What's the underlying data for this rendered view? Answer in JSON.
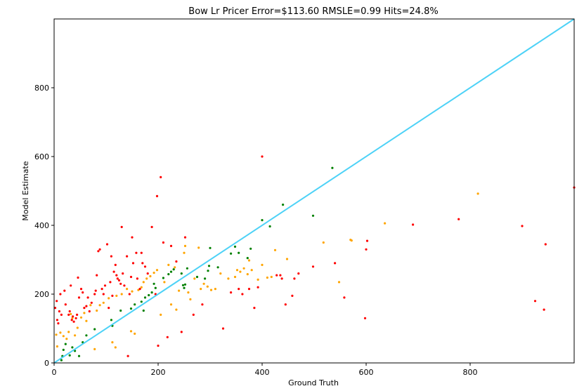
{
  "chart_data": {
    "type": "scatter",
    "title": "Bow Lr Pricer Error=$113.60 RMSLE=0.99 Hits=24.8%",
    "xlabel": "Ground Truth",
    "ylabel": "Model Estimate",
    "xlim": [
      0,
      1000
    ],
    "ylim": [
      0,
      1000
    ],
    "xticks": [
      0,
      200,
      400,
      600,
      800
    ],
    "yticks": [
      0,
      200,
      400,
      600,
      800
    ],
    "grid": false,
    "legend": "none",
    "colors": {
      "identity_line": "#4dd2f7",
      "red": "#ff0000",
      "orange": "#ffa500",
      "green": "#008000",
      "axis": "#000000"
    },
    "identity_line": {
      "x": [
        0,
        1000
      ],
      "y": [
        0,
        1000
      ]
    },
    "series": [
      {
        "color_key": "green",
        "points": [
          [
            14,
            8
          ],
          [
            16,
            20
          ],
          [
            18,
            38
          ],
          [
            22,
            55
          ],
          [
            30,
            22
          ],
          [
            35,
            45
          ],
          [
            40,
            35
          ],
          [
            48,
            20
          ],
          [
            55,
            60
          ],
          [
            62,
            80
          ],
          [
            78,
            98
          ],
          [
            110,
            125
          ],
          [
            112,
            108
          ],
          [
            128,
            152
          ],
          [
            148,
            158
          ],
          [
            155,
            170
          ],
          [
            168,
            178
          ],
          [
            172,
            152
          ],
          [
            175,
            190
          ],
          [
            182,
            197
          ],
          [
            188,
            205
          ],
          [
            192,
            230
          ],
          [
            195,
            218
          ],
          [
            210,
            247
          ],
          [
            220,
            258
          ],
          [
            225,
            265
          ],
          [
            230,
            272
          ],
          [
            245,
            260
          ],
          [
            248,
            226
          ],
          [
            250,
            218
          ],
          [
            252,
            228
          ],
          [
            256,
            275
          ],
          [
            275,
            250
          ],
          [
            290,
            245
          ],
          [
            296,
            268
          ],
          [
            298,
            282
          ],
          [
            300,
            334
          ],
          [
            315,
            278
          ],
          [
            340,
            318
          ],
          [
            348,
            338
          ],
          [
            355,
            320
          ],
          [
            372,
            305
          ],
          [
            378,
            332
          ],
          [
            400,
            415
          ],
          [
            415,
            397
          ],
          [
            440,
            460
          ],
          [
            498,
            428
          ],
          [
            535,
            567
          ]
        ]
      },
      {
        "color_key": "orange",
        "points": [
          [
            4,
            82
          ],
          [
            6,
            48
          ],
          [
            12,
            88
          ],
          [
            18,
            78
          ],
          [
            24,
            70
          ],
          [
            28,
            90
          ],
          [
            32,
            142
          ],
          [
            35,
            130
          ],
          [
            40,
            80
          ],
          [
            45,
            102
          ],
          [
            52,
            132
          ],
          [
            58,
            145
          ],
          [
            62,
            122
          ],
          [
            70,
            168
          ],
          [
            78,
            40
          ],
          [
            82,
            152
          ],
          [
            88,
            168
          ],
          [
            95,
            175
          ],
          [
            105,
            188
          ],
          [
            112,
            60
          ],
          [
            118,
            45
          ],
          [
            120,
            195
          ],
          [
            130,
            200
          ],
          [
            140,
            215
          ],
          [
            148,
            92
          ],
          [
            150,
            208
          ],
          [
            155,
            85
          ],
          [
            162,
            212
          ],
          [
            168,
            220
          ],
          [
            172,
            235
          ],
          [
            178,
            245
          ],
          [
            185,
            252
          ],
          [
            192,
            262
          ],
          [
            198,
            270
          ],
          [
            205,
            140
          ],
          [
            212,
            235
          ],
          [
            220,
            285
          ],
          [
            225,
            170
          ],
          [
            232,
            278
          ],
          [
            235,
            155
          ],
          [
            240,
            210
          ],
          [
            250,
            320
          ],
          [
            252,
            340
          ],
          [
            258,
            205
          ],
          [
            262,
            185
          ],
          [
            270,
            245
          ],
          [
            278,
            335
          ],
          [
            282,
            215
          ],
          [
            288,
            230
          ],
          [
            295,
            222
          ],
          [
            302,
            212
          ],
          [
            310,
            215
          ],
          [
            320,
            260
          ],
          [
            335,
            245
          ],
          [
            348,
            250
          ],
          [
            352,
            270
          ],
          [
            358,
            265
          ],
          [
            365,
            275
          ],
          [
            372,
            258
          ],
          [
            375,
            298
          ],
          [
            380,
            270
          ],
          [
            392,
            242
          ],
          [
            400,
            285
          ],
          [
            410,
            248
          ],
          [
            418,
            250
          ],
          [
            425,
            328
          ],
          [
            448,
            302
          ],
          [
            518,
            350
          ],
          [
            548,
            235
          ],
          [
            570,
            358
          ],
          [
            572,
            356
          ],
          [
            636,
            406
          ],
          [
            815,
            492
          ]
        ]
      },
      {
        "color_key": "red",
        "points": [
          [
            2,
            160
          ],
          [
            5,
            180
          ],
          [
            6,
            125
          ],
          [
            8,
            115
          ],
          [
            10,
            150
          ],
          [
            12,
            200
          ],
          [
            14,
            140
          ],
          [
            20,
            210
          ],
          [
            22,
            170
          ],
          [
            28,
            140
          ],
          [
            30,
            150
          ],
          [
            32,
            225
          ],
          [
            34,
            125
          ],
          [
            36,
            135
          ],
          [
            38,
            120
          ],
          [
            42,
            130
          ],
          [
            44,
            140
          ],
          [
            46,
            248
          ],
          [
            48,
            190
          ],
          [
            52,
            215
          ],
          [
            55,
            205
          ],
          [
            58,
            160
          ],
          [
            62,
            165
          ],
          [
            65,
            190
          ],
          [
            68,
            150
          ],
          [
            72,
            175
          ],
          [
            78,
            200
          ],
          [
            80,
            210
          ],
          [
            82,
            255
          ],
          [
            85,
            325
          ],
          [
            88,
            330
          ],
          [
            92,
            215
          ],
          [
            95,
            200
          ],
          [
            98,
            225
          ],
          [
            102,
            345
          ],
          [
            105,
            160
          ],
          [
            108,
            235
          ],
          [
            110,
            310
          ],
          [
            112,
            195
          ],
          [
            115,
            265
          ],
          [
            118,
            285
          ],
          [
            120,
            255
          ],
          [
            122,
            245
          ],
          [
            125,
            240
          ],
          [
            128,
            230
          ],
          [
            130,
            395
          ],
          [
            132,
            260
          ],
          [
            135,
            225
          ],
          [
            140,
            310
          ],
          [
            142,
            20
          ],
          [
            145,
            200
          ],
          [
            148,
            250
          ],
          [
            150,
            365
          ],
          [
            152,
            290
          ],
          [
            158,
            320
          ],
          [
            160,
            245
          ],
          [
            165,
            215
          ],
          [
            168,
            320
          ],
          [
            170,
            290
          ],
          [
            175,
            280
          ],
          [
            180,
            260
          ],
          [
            188,
            395
          ],
          [
            195,
            200
          ],
          [
            198,
            485
          ],
          [
            200,
            50
          ],
          [
            205,
            540
          ],
          [
            210,
            350
          ],
          [
            218,
            75
          ],
          [
            225,
            340
          ],
          [
            235,
            295
          ],
          [
            245,
            90
          ],
          [
            252,
            365
          ],
          [
            268,
            140
          ],
          [
            285,
            170
          ],
          [
            325,
            100
          ],
          [
            340,
            205
          ],
          [
            355,
            215
          ],
          [
            362,
            200
          ],
          [
            375,
            215
          ],
          [
            385,
            160
          ],
          [
            392,
            220
          ],
          [
            400,
            600
          ],
          [
            428,
            255
          ],
          [
            435,
            255
          ],
          [
            438,
            245
          ],
          [
            445,
            170
          ],
          [
            458,
            195
          ],
          [
            462,
            245
          ],
          [
            470,
            260
          ],
          [
            498,
            280
          ],
          [
            540,
            290
          ],
          [
            558,
            190
          ],
          [
            598,
            130
          ],
          [
            600,
            330
          ],
          [
            602,
            355
          ],
          [
            690,
            402
          ],
          [
            778,
            418
          ],
          [
            900,
            398
          ],
          [
            925,
            180
          ],
          [
            942,
            155
          ],
          [
            945,
            345
          ],
          [
            1000,
            510
          ]
        ]
      }
    ]
  }
}
